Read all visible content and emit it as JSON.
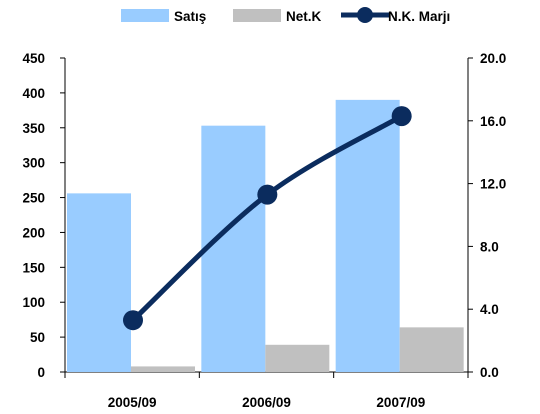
{
  "chart_data": {
    "type": "bar",
    "categories": [
      "2005/09",
      "2006/09",
      "2007/09"
    ],
    "series": [
      {
        "name": "Satış",
        "type": "bar",
        "axis": "left",
        "color": "#99ccff",
        "values": [
          256,
          353,
          390
        ]
      },
      {
        "name": "Net.K",
        "type": "bar",
        "axis": "left",
        "color": "#c0c0c0",
        "values": [
          8,
          39,
          64
        ]
      },
      {
        "name": "N.K. Marjı",
        "type": "line",
        "axis": "right",
        "color": "#0b2c5e",
        "values": [
          3.3,
          11.3,
          16.3
        ]
      }
    ],
    "y_left": {
      "min": 0,
      "max": 450,
      "step": 50,
      "tick_labels": [
        "0",
        "50",
        "100",
        "150",
        "200",
        "250",
        "300",
        "350",
        "400",
        "450"
      ]
    },
    "y_right": {
      "min": 0,
      "max": 20,
      "step": 4,
      "tick_labels": [
        "0.0",
        "4.0",
        "8.0",
        "12.0",
        "16.0",
        "20.0"
      ]
    },
    "legend": {
      "position": "top",
      "labels": [
        "Satış",
        "Net.K",
        "N.K. Marjı"
      ]
    },
    "grid": false
  }
}
